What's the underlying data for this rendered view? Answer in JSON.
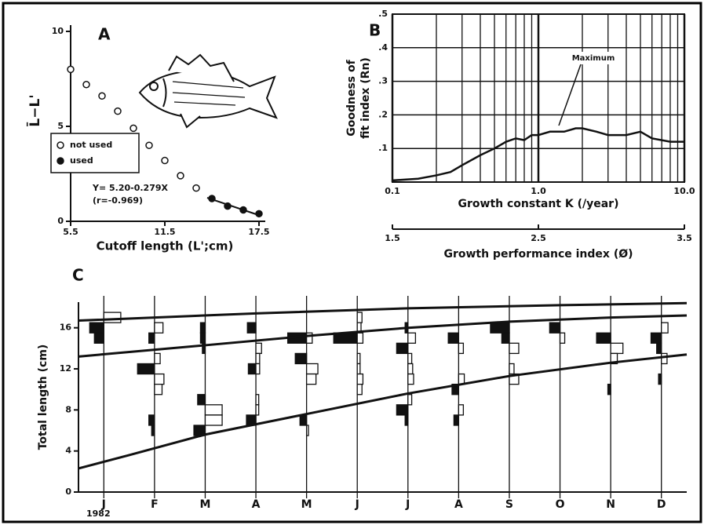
{
  "chart_data": [
    {
      "type": "scatter",
      "panel": "A",
      "xlabel": "Cutoff length (L';cm)",
      "ylabel": "L̄−L'",
      "xlim": [
        5.5,
        17.5
      ],
      "xticks": [
        5.5,
        11.5,
        17.5
      ],
      "ylim": [
        0,
        10
      ],
      "yticks": [
        0,
        5,
        10
      ],
      "legend": "left",
      "series": [
        {
          "name": "not used",
          "marker": "open",
          "color": "#111",
          "x": [
            5.5,
            6.5,
            7.5,
            8.5,
            9.5,
            10.5,
            11.5,
            12.5,
            13.5
          ],
          "values": [
            8.0,
            7.2,
            6.6,
            5.8,
            4.9,
            4.0,
            3.2,
            2.4,
            1.75
          ]
        },
        {
          "name": "used",
          "marker": "filled",
          "color": "#111",
          "x": [
            14.5,
            15.5,
            16.5,
            17.5
          ],
          "values": [
            1.2,
            0.8,
            0.6,
            0.4
          ]
        }
      ],
      "trend": {
        "x": [
          14.2,
          17.5
        ],
        "values": [
          1.24,
          0.32
        ]
      },
      "annotation": [
        "Y= 5.20-0.279X",
        "(r=-0.969)"
      ]
    },
    {
      "type": "line",
      "panel": "B",
      "xlabel": "Growth constant  K (/year)",
      "ylabel": [
        "Goodness of",
        "fit index (Rn)"
      ],
      "log_x": true,
      "grid": true,
      "color": "#111",
      "xlim": [
        0.1,
        10
      ],
      "xticks": [
        0.1,
        {
          "value": 1,
          "label": "1.0"
        },
        {
          "value": 10,
          "label": "10.0"
        }
      ],
      "ylim": [
        0,
        0.5
      ],
      "yticks": [
        {
          "value": 0.1,
          "label": ".1"
        },
        {
          "value": 0.2,
          "label": ".2"
        },
        {
          "value": 0.3,
          "label": ".3"
        },
        {
          "value": 0.4,
          "label": ".4"
        },
        {
          "value": 0.5,
          "label": ".5"
        }
      ],
      "x2label": "Growth performance index (Ø)",
      "x2lim": [
        1.5,
        3.5
      ],
      "x2ticks": [
        1.5,
        2.5,
        3.5
      ],
      "annotation": "Maximum",
      "x": [
        0.1,
        0.15,
        0.2,
        0.25,
        0.3,
        0.4,
        0.5,
        0.6,
        0.7,
        0.8,
        0.9,
        1.0,
        1.2,
        1.5,
        1.8,
        2.0,
        2.5,
        3,
        4,
        5,
        6,
        8,
        10
      ],
      "values": [
        0.005,
        0.01,
        0.02,
        0.03,
        0.05,
        0.08,
        0.1,
        0.12,
        0.13,
        0.125,
        0.14,
        0.14,
        0.15,
        0.15,
        0.16,
        0.16,
        0.15,
        0.14,
        0.14,
        0.15,
        0.13,
        0.12,
        0.12
      ]
    },
    {
      "type": "histogram",
      "panel": "C",
      "ylabel": "Total length (cm)",
      "year": "1982",
      "categories": [
        "J",
        "F",
        "M",
        "A",
        "M",
        "J",
        "J",
        "A",
        "S",
        "O",
        "N",
        "D"
      ],
      "xlim": [
        -0.5,
        11.5
      ],
      "ylim": [
        0,
        18.5
      ],
      "yticks": [
        0,
        4,
        8,
        12,
        16
      ],
      "curves": [
        {
          "x": [
            -0.5,
            0.5,
            2,
            4,
            6,
            8,
            10,
            11.5
          ],
          "values": [
            2.3,
            3.6,
            5.6,
            7.6,
            9.6,
            11.3,
            12.6,
            13.4
          ]
        },
        {
          "x": [
            -0.5,
            2,
            4,
            6,
            8,
            10,
            11.5
          ],
          "values": [
            13.2,
            14.3,
            15.2,
            16.0,
            16.6,
            17.0,
            17.2
          ]
        },
        {
          "x": [
            -0.5,
            3,
            6,
            9,
            11.5
          ],
          "values": [
            16.7,
            17.4,
            17.9,
            18.2,
            18.4
          ]
        }
      ],
      "histograms": [
        {
          "filled": [
            [
              16,
              1.5
            ],
            [
              15,
              1
            ]
          ],
          "open": [
            [
              17,
              1.8
            ]
          ]
        },
        {
          "filled": [
            [
              15,
              0.6
            ],
            [
              12,
              1.8
            ],
            [
              7,
              0.6
            ],
            [
              6,
              0.3
            ]
          ],
          "open": [
            [
              16,
              0.9
            ],
            [
              13,
              0.6
            ],
            [
              11,
              1
            ],
            [
              10,
              0.8
            ]
          ]
        },
        {
          "filled": [
            [
              16,
              0.5
            ],
            [
              15,
              0.5
            ],
            [
              14,
              0.3
            ],
            [
              9,
              0.8
            ],
            [
              6,
              1.2
            ]
          ],
          "open": [
            [
              8,
              1.8
            ],
            [
              7,
              1.8
            ]
          ]
        },
        {
          "filled": [
            [
              16,
              0.9
            ],
            [
              12,
              0.8
            ],
            [
              7,
              1
            ]
          ],
          "open": [
            [
              14,
              0.6
            ],
            [
              13,
              0.4
            ],
            [
              12,
              0.4
            ],
            [
              9,
              0.3
            ],
            [
              8,
              0.3
            ]
          ]
        },
        {
          "filled": [
            [
              15,
              2
            ],
            [
              13,
              1.2
            ],
            [
              7,
              0.7
            ]
          ],
          "open": [
            [
              15,
              0.6
            ],
            [
              12,
              1.2
            ],
            [
              11,
              1
            ],
            [
              6,
              0.2
            ]
          ]
        },
        {
          "filled": [
            [
              15,
              2.5
            ]
          ],
          "open": [
            [
              17,
              0.5
            ],
            [
              16,
              0.4
            ],
            [
              15,
              0.6
            ],
            [
              13,
              0.3
            ],
            [
              12,
              0.3
            ],
            [
              11,
              0.6
            ],
            [
              10,
              0.5
            ]
          ]
        },
        {
          "filled": [
            [
              16,
              0.3
            ],
            [
              14,
              1.2
            ],
            [
              8,
              1.2
            ],
            [
              7,
              0.3
            ]
          ],
          "open": [
            [
              15,
              0.8
            ],
            [
              13,
              0.4
            ],
            [
              12,
              0.5
            ],
            [
              11,
              0.6
            ],
            [
              9,
              0.4
            ]
          ]
        },
        {
          "filled": [
            [
              15,
              1.1
            ],
            [
              10,
              0.7
            ],
            [
              7,
              0.5
            ]
          ],
          "open": [
            [
              14,
              0.5
            ],
            [
              11,
              0.6
            ],
            [
              8,
              0.5
            ]
          ]
        },
        {
          "filled": [
            [
              16,
              2
            ],
            [
              15,
              0.8
            ]
          ],
          "open": [
            [
              14,
              1
            ],
            [
              12,
              0.5
            ],
            [
              11,
              1
            ]
          ]
        },
        {
          "filled": [
            [
              16,
              1.1
            ]
          ],
          "open": [
            [
              15,
              0.5
            ]
          ]
        },
        {
          "filled": [
            [
              15,
              1.5
            ],
            [
              10,
              0.3
            ]
          ],
          "open": [
            [
              14,
              1.3
            ],
            [
              13,
              0.7
            ]
          ]
        },
        {
          "filled": [
            [
              15,
              1.1
            ],
            [
              14,
              0.5
            ],
            [
              11,
              0.3
            ]
          ],
          "open": [
            [
              16,
              0.7
            ],
            [
              13,
              0.6
            ]
          ]
        }
      ]
    }
  ]
}
